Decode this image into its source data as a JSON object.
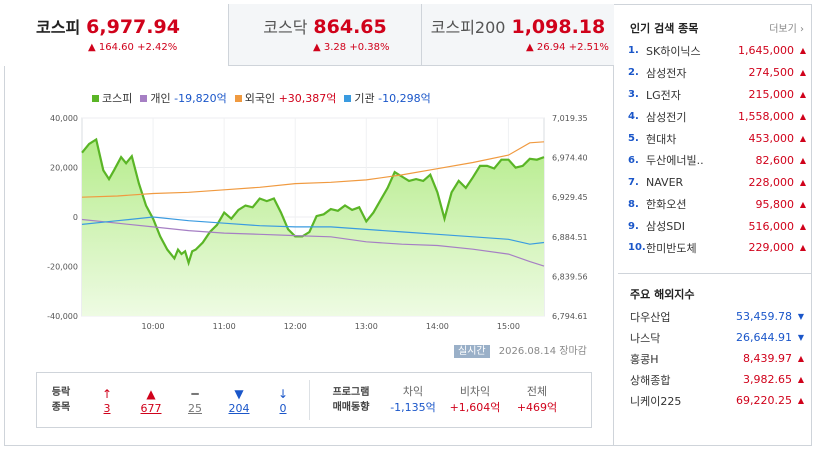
{
  "tabs": [
    {
      "name": "코스피",
      "value": "6,977.94",
      "change": "164.60",
      "rate": "+2.42%",
      "active": true
    },
    {
      "name": "코스닥",
      "value": "864.65",
      "change": "3.28",
      "rate": "+0.38%",
      "active": false
    },
    {
      "name": "코스피200",
      "value": "1,098.18",
      "change": "26.94",
      "rate": "+2.51%",
      "active": false
    }
  ],
  "legend": {
    "kospi": "코스피",
    "individual_label": "개인",
    "individual_value": "-19,820억",
    "foreign_label": "외국인",
    "foreign_value": "+30,387억",
    "institution_label": "기관",
    "institution_value": "-10,298억"
  },
  "colors": {
    "kospi": "#5ab526",
    "individual": "#a67fc4",
    "foreign": "#f09a40",
    "institution": "#3a9be0",
    "up": "#d0021b",
    "down": "#1a56c9"
  },
  "chart_data": {
    "type": "line",
    "x_ticks": [
      "10:00",
      "11:00",
      "12:00",
      "13:00",
      "14:00",
      "15:00"
    ],
    "left_axis": {
      "ticks": [
        "40,000",
        "20,000",
        "0",
        "-20,000",
        "-40,000"
      ],
      "range": [
        -40000,
        40000
      ]
    },
    "right_axis": {
      "ticks": [
        "7,019.35",
        "6,974.40",
        "6,929.45",
        "6,884.51",
        "6,839.56",
        "6,794.61"
      ],
      "range": [
        6794.61,
        7019.35
      ]
    },
    "x_range": [
      9.0,
      15.5
    ],
    "series": [
      {
        "name": "코스피",
        "axis": "right",
        "x": [
          9.0,
          9.1,
          9.2,
          9.3,
          9.38,
          9.45,
          9.55,
          9.62,
          9.7,
          9.8,
          9.9,
          10.0,
          10.1,
          10.2,
          10.3,
          10.35,
          10.4,
          10.45,
          10.5,
          10.55,
          10.6,
          10.7,
          10.8,
          10.9,
          11.0,
          11.1,
          11.2,
          11.3,
          11.4,
          11.5,
          11.6,
          11.7,
          11.8,
          11.9,
          12.0,
          12.1,
          12.2,
          12.3,
          12.4,
          12.5,
          12.6,
          12.7,
          12.8,
          12.9,
          13.0,
          13.1,
          13.2,
          13.3,
          13.4,
          13.5,
          13.6,
          13.7,
          13.8,
          13.9,
          14.0,
          14.1,
          14.2,
          14.3,
          14.4,
          14.5,
          14.6,
          14.7,
          14.8,
          14.9,
          15.0,
          15.1,
          15.2,
          15.3,
          15.4,
          15.5
        ],
        "y": [
          6980,
          6990,
          6995,
          6960,
          6950,
          6960,
          6975,
          6968,
          6976,
          6945,
          6920,
          6905,
          6885,
          6870,
          6860,
          6870,
          6865,
          6868,
          6855,
          6868,
          6870,
          6878,
          6890,
          6898,
          6912,
          6905,
          6915,
          6920,
          6918,
          6928,
          6925,
          6928,
          6912,
          6893,
          6885,
          6885,
          6890,
          6908,
          6910,
          6916,
          6914,
          6920,
          6915,
          6918,
          6902,
          6912,
          6926,
          6940,
          6958,
          6953,
          6948,
          6950,
          6948,
          6955,
          6935,
          6905,
          6935,
          6948,
          6940,
          6952,
          6965,
          6965,
          6962,
          6972,
          6972,
          6963,
          6965,
          6973,
          6972,
          6975
        ]
      },
      {
        "name": "외국인",
        "axis": "left",
        "x": [
          9.0,
          9.5,
          10.0,
          10.5,
          11.0,
          11.5,
          12.0,
          12.5,
          13.0,
          13.5,
          14.0,
          14.5,
          15.0,
          15.3,
          15.5
        ],
        "y": [
          8000,
          8500,
          9500,
          10000,
          11000,
          12000,
          13500,
          14000,
          15000,
          17000,
          19500,
          22000,
          25000,
          30000,
          30387
        ]
      },
      {
        "name": "개인",
        "axis": "left",
        "x": [
          9.0,
          9.5,
          10.0,
          10.5,
          11.0,
          11.5,
          12.0,
          12.5,
          13.0,
          13.5,
          14.0,
          14.5,
          15.0,
          15.3,
          15.5
        ],
        "y": [
          -1000,
          -2500,
          -4000,
          -5500,
          -6500,
          -7000,
          -7500,
          -8000,
          -10000,
          -11000,
          -11500,
          -13000,
          -15000,
          -18000,
          -19820
        ]
      },
      {
        "name": "기관",
        "axis": "left",
        "x": [
          9.0,
          9.5,
          10.0,
          10.5,
          11.0,
          11.5,
          12.0,
          12.5,
          13.0,
          13.5,
          14.0,
          14.5,
          15.0,
          15.3,
          15.5
        ],
        "y": [
          -3000,
          -1500,
          0,
          -1500,
          -2500,
          -3500,
          -4000,
          -4000,
          -5000,
          -6000,
          -7000,
          -8000,
          -9000,
          -11000,
          -10298
        ]
      }
    ]
  },
  "status": {
    "badge": "실시간",
    "date": "2026.08.14",
    "state": "장마감"
  },
  "breadth": {
    "label_line1": "등락",
    "label_line2": "종목",
    "items": [
      {
        "name": "upper-limit",
        "symbol": "↑",
        "value": "3",
        "color": "#d0021b"
      },
      {
        "name": "rising",
        "symbol": "▲",
        "value": "677",
        "color": "#d0021b"
      },
      {
        "name": "flat",
        "symbol": "━",
        "value": "25",
        "color": "#777777"
      },
      {
        "name": "falling",
        "symbol": "▼",
        "value": "204",
        "color": "#1a56c9"
      },
      {
        "name": "lower-limit",
        "symbol": "↓",
        "value": "0",
        "color": "#1a56c9"
      }
    ]
  },
  "program": {
    "label_line1": "프로그램",
    "label_line2": "매매동향",
    "items": [
      {
        "header": "차익",
        "value": "-1,135억",
        "dir": "down"
      },
      {
        "header": "비차익",
        "value": "+1,604억",
        "dir": "up"
      },
      {
        "header": "전체",
        "value": "+469억",
        "dir": "up"
      }
    ]
  },
  "popular": {
    "title": "인기 검색 종목",
    "more": "더보기",
    "items": [
      {
        "rank": "1.",
        "name": "SK하이닉스",
        "price": "1,645,000"
      },
      {
        "rank": "2.",
        "name": "삼성전자",
        "price": "274,500"
      },
      {
        "rank": "3.",
        "name": "LG전자",
        "price": "215,000"
      },
      {
        "rank": "4.",
        "name": "삼성전기",
        "price": "1,558,000"
      },
      {
        "rank": "5.",
        "name": "현대차",
        "price": "453,000"
      },
      {
        "rank": "6.",
        "name": "두산에너빌..",
        "price": "82,600"
      },
      {
        "rank": "7.",
        "name": "NAVER",
        "price": "228,000"
      },
      {
        "rank": "8.",
        "name": "한화오션",
        "price": "95,800"
      },
      {
        "rank": "9.",
        "name": "삼성SDI",
        "price": "516,000"
      },
      {
        "rank": "10.",
        "name": "한미반도체",
        "price": "229,000"
      }
    ]
  },
  "world": {
    "title": "주요 해외지수",
    "items": [
      {
        "name": "다우산업",
        "value": "53,459.78",
        "dir": "down"
      },
      {
        "name": "나스닥",
        "value": "26,644.91",
        "dir": "down"
      },
      {
        "name": "홍콩H",
        "value": "8,439.97",
        "dir": "up"
      },
      {
        "name": "상해종합",
        "value": "3,982.65",
        "dir": "up"
      },
      {
        "name": "니케이225",
        "value": "69,220.25",
        "dir": "up"
      }
    ]
  }
}
